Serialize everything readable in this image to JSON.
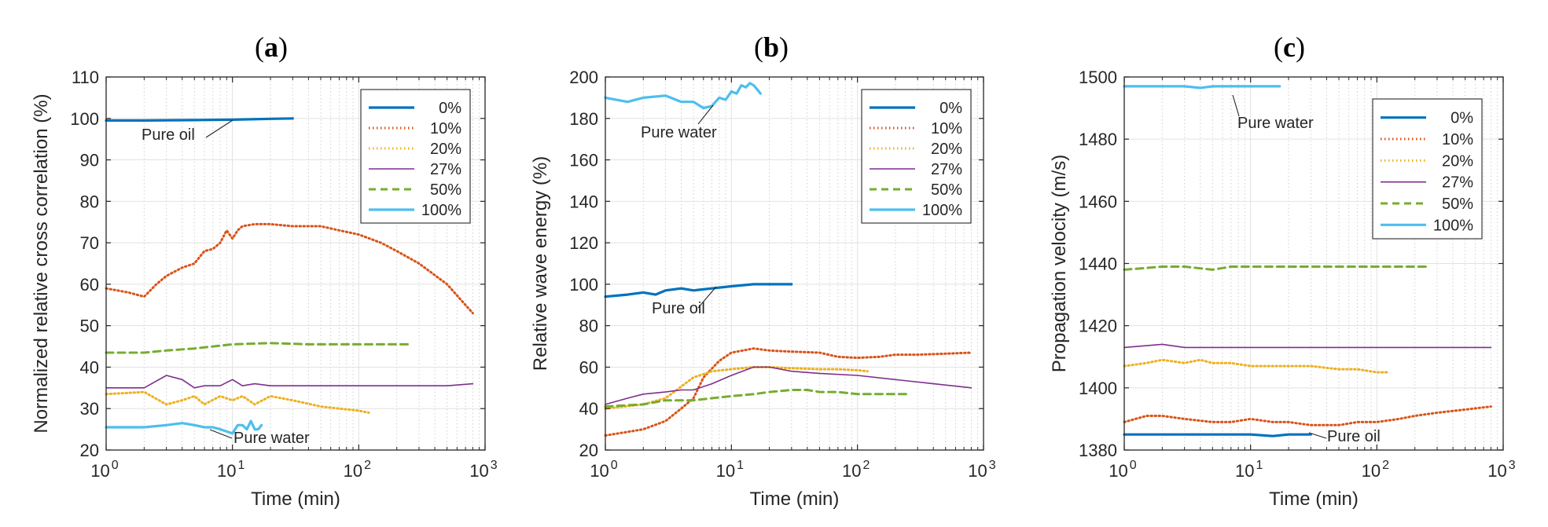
{
  "colors": {
    "c0": "#0072bd",
    "c10": "#d95319",
    "c20": "#edb120",
    "c27": "#7e2f8e",
    "c50": "#77ac30",
    "c100": "#4dbeee"
  },
  "chart_data": [
    {
      "type": "line",
      "panel_letter": "a",
      "title_open": "(",
      "title_close": ")",
      "xlabel": "Time (min)",
      "ylabel": "Normalized relative cross correlation (%)",
      "xscale": "log",
      "xlim": [
        1,
        1000
      ],
      "ylim": [
        20,
        110
      ],
      "yticks": [
        20,
        30,
        40,
        50,
        60,
        70,
        80,
        90,
        100,
        110
      ],
      "xtick_base": "10",
      "xtick_exps": [
        "0",
        "1",
        "2",
        "3"
      ],
      "legend_position": "top-right",
      "legend": [
        "0%",
        "10%",
        "20%",
        "27%",
        "50%",
        "100%"
      ],
      "grid": true,
      "series": [
        {
          "name": "0%",
          "style": "solid-thick",
          "x": [
            1,
            2,
            5,
            10,
            20,
            30
          ],
          "y": [
            99.5,
            99.5,
            99.6,
            99.7,
            99.9,
            100
          ]
        },
        {
          "name": "10%",
          "style": "dotted",
          "x": [
            1,
            1.5,
            2,
            2.5,
            3,
            4,
            5,
            6,
            7,
            8,
            9,
            10,
            11,
            12,
            15,
            20,
            30,
            40,
            50,
            70,
            100,
            150,
            200,
            300,
            500,
            800
          ],
          "y": [
            59,
            58,
            57,
            60,
            62,
            64,
            65,
            68,
            68.5,
            70,
            73,
            71,
            73,
            74,
            74.5,
            74.5,
            74,
            74,
            74,
            73,
            72,
            70,
            68,
            65,
            60,
            53
          ]
        },
        {
          "name": "20%",
          "style": "dotted",
          "x": [
            1,
            2,
            3,
            4,
            5,
            6,
            8,
            10,
            12,
            15,
            20,
            30,
            50,
            70,
            100,
            120
          ],
          "y": [
            33.5,
            34,
            31,
            32,
            33,
            31,
            33,
            32,
            33,
            31,
            33,
            32,
            30.5,
            30,
            29.5,
            29
          ]
        },
        {
          "name": "27%",
          "style": "solid-thin",
          "x": [
            1,
            2,
            3,
            4,
            5,
            6,
            8,
            10,
            12,
            15,
            20,
            30,
            50,
            100,
            200,
            500,
            800
          ],
          "y": [
            35,
            35,
            38,
            37,
            35,
            35.5,
            35.5,
            37,
            35.5,
            36,
            35.5,
            35.5,
            35.5,
            35.5,
            35.5,
            35.5,
            36
          ]
        },
        {
          "name": "50%",
          "style": "dashed",
          "x": [
            1,
            2,
            3,
            5,
            7,
            10,
            20,
            40,
            60,
            100,
            150,
            250
          ],
          "y": [
            43.5,
            43.5,
            44,
            44.5,
            45,
            45.5,
            45.8,
            45.5,
            45.5,
            45.5,
            45.5,
            45.5
          ]
        },
        {
          "name": "100%",
          "style": "solid-thick",
          "x": [
            1,
            2,
            3,
            4,
            5,
            6,
            7,
            8,
            10,
            11,
            12,
            13,
            14,
            15,
            16,
            17
          ],
          "y": [
            25.5,
            25.5,
            26,
            26.5,
            26,
            25.5,
            25.5,
            25,
            24,
            26,
            26,
            25,
            27,
            25,
            25,
            26
          ]
        }
      ],
      "annotations": [
        {
          "text": "Pure oil",
          "series": "0%"
        },
        {
          "text": "Pure water",
          "series": "100%"
        }
      ]
    },
    {
      "type": "line",
      "panel_letter": "b",
      "title_open": "(",
      "title_close": ")",
      "xlabel": "Time (min)",
      "ylabel": "Relative wave energy (%)",
      "xscale": "log",
      "xlim": [
        1,
        1000
      ],
      "ylim": [
        20,
        200
      ],
      "yticks": [
        20,
        40,
        60,
        80,
        100,
        120,
        140,
        160,
        180,
        200
      ],
      "xtick_base": "10",
      "xtick_exps": [
        "0",
        "1",
        "2",
        "3"
      ],
      "legend_position": "top-right",
      "legend": [
        "0%",
        "10%",
        "20%",
        "27%",
        "50%",
        "100%"
      ],
      "grid": true,
      "series": [
        {
          "name": "0%",
          "style": "solid-thick",
          "x": [
            1,
            1.5,
            2,
            2.5,
            3,
            4,
            5,
            7,
            10,
            15,
            20,
            30
          ],
          "y": [
            94,
            95,
            96,
            95,
            97,
            98,
            97,
            98,
            99,
            100,
            100,
            100
          ]
        },
        {
          "name": "10%",
          "style": "dotted",
          "x": [
            1,
            2,
            3,
            4,
            5,
            6,
            8,
            10,
            15,
            20,
            30,
            50,
            70,
            100,
            150,
            200,
            300,
            500,
            800
          ],
          "y": [
            27,
            30,
            34,
            40,
            45,
            55,
            63,
            67,
            69,
            68,
            67.5,
            67,
            65,
            64.5,
            65,
            66,
            66,
            66.5,
            67
          ]
        },
        {
          "name": "20%",
          "style": "dotted",
          "x": [
            1,
            2,
            3,
            5,
            7,
            10,
            15,
            20,
            30,
            50,
            70,
            100,
            120
          ],
          "y": [
            40,
            42,
            45,
            55,
            58,
            59,
            60,
            60,
            59.5,
            59,
            59,
            58.5,
            58
          ]
        },
        {
          "name": "27%",
          "style": "solid-thin",
          "x": [
            1,
            1.5,
            2,
            3,
            4,
            5,
            7,
            10,
            15,
            20,
            30,
            50,
            100,
            200,
            400,
            800
          ],
          "y": [
            42,
            45,
            47,
            48,
            49,
            49,
            52,
            56,
            60,
            60,
            58,
            57,
            56,
            54,
            52,
            50
          ]
        },
        {
          "name": "50%",
          "style": "dashed",
          "x": [
            1,
            2,
            3,
            5,
            7,
            10,
            15,
            20,
            30,
            40,
            50,
            70,
            100,
            150,
            250
          ],
          "y": [
            41,
            42,
            44,
            44,
            45,
            46,
            47,
            48,
            49,
            49,
            48,
            48,
            47,
            47,
            47
          ]
        },
        {
          "name": "100%",
          "style": "solid-thick",
          "x": [
            1,
            1.5,
            2,
            3,
            4,
            5,
            6,
            7,
            8,
            9,
            10,
            11,
            12,
            13,
            14,
            15,
            16,
            17
          ],
          "y": [
            190,
            188,
            190,
            191,
            188,
            188,
            185,
            186,
            190,
            189,
            193,
            192,
            196,
            195,
            197,
            196,
            194,
            192
          ]
        }
      ],
      "annotations": [
        {
          "text": "Pure water",
          "series": "100%"
        },
        {
          "text": "Pure oil",
          "series": "0%"
        }
      ]
    },
    {
      "type": "line",
      "panel_letter": "c",
      "title_open": "(",
      "title_close": ")",
      "xlabel": "Time (min)",
      "ylabel": "Propagation velocity (m/s)",
      "xscale": "log",
      "xlim": [
        1,
        1000
      ],
      "ylim": [
        1380,
        1500
      ],
      "yticks": [
        1380,
        1400,
        1420,
        1440,
        1460,
        1480,
        1500
      ],
      "xtick_base": "10",
      "xtick_exps": [
        "0",
        "1",
        "2",
        "3"
      ],
      "legend_position": "top-right",
      "legend": [
        "0%",
        "10%",
        "20%",
        "27%",
        "50%",
        "100%"
      ],
      "grid": true,
      "series": [
        {
          "name": "0%",
          "style": "solid-thick",
          "x": [
            1,
            2,
            3,
            5,
            7,
            10,
            15,
            20,
            30
          ],
          "y": [
            1385,
            1385,
            1385,
            1385,
            1385,
            1385,
            1384.5,
            1385,
            1385
          ]
        },
        {
          "name": "10%",
          "style": "dotted",
          "x": [
            1,
            1.5,
            2,
            3,
            5,
            7,
            10,
            15,
            20,
            30,
            50,
            70,
            100,
            150,
            200,
            300,
            500,
            800
          ],
          "y": [
            1389,
            1391,
            1391,
            1390,
            1389,
            1389,
            1390,
            1389,
            1389,
            1388,
            1388,
            1389,
            1389,
            1390,
            1391,
            1392,
            1393,
            1394
          ]
        },
        {
          "name": "20%",
          "style": "dotted",
          "x": [
            1,
            1.5,
            2,
            3,
            4,
            5,
            7,
            10,
            15,
            20,
            30,
            50,
            70,
            100,
            120
          ],
          "y": [
            1407,
            1408,
            1409,
            1408,
            1409,
            1408,
            1408,
            1407,
            1407,
            1407,
            1407,
            1406,
            1406,
            1405,
            1405
          ]
        },
        {
          "name": "27%",
          "style": "solid-thin",
          "x": [
            1,
            2,
            3,
            5,
            7,
            10,
            15,
            20,
            30,
            50,
            100,
            200,
            400,
            800
          ],
          "y": [
            1413,
            1414,
            1413,
            1413,
            1413,
            1413,
            1413,
            1413,
            1413,
            1413,
            1413,
            1413,
            1413,
            1413
          ]
        },
        {
          "name": "50%",
          "style": "dashed",
          "x": [
            1,
            2,
            3,
            5,
            7,
            10,
            15,
            20,
            30,
            50,
            70,
            100,
            150,
            250
          ],
          "y": [
            1438,
            1439,
            1439,
            1438,
            1439,
            1439,
            1439,
            1439,
            1439,
            1439,
            1439,
            1439,
            1439,
            1439
          ]
        },
        {
          "name": "100%",
          "style": "solid-thick",
          "x": [
            1,
            1.5,
            2,
            3,
            4,
            5,
            7,
            10,
            12,
            15,
            17
          ],
          "y": [
            1497,
            1497,
            1497,
            1497,
            1496.5,
            1497,
            1497,
            1497,
            1497,
            1497,
            1497
          ]
        }
      ],
      "annotations": [
        {
          "text": "Pure water",
          "series": "100%"
        },
        {
          "text": "Pure oil",
          "series": "0%"
        }
      ]
    }
  ]
}
